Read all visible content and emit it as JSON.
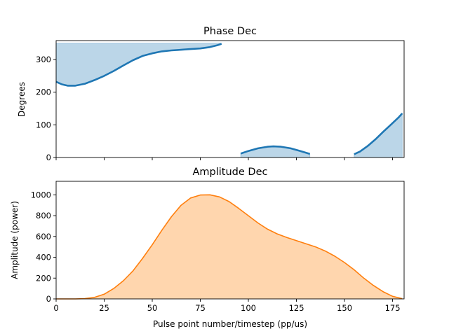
{
  "chart_data": [
    {
      "type": "area",
      "title": "Phase Dec",
      "xlabel": "",
      "ylabel": "Degrees",
      "xlim": [
        0,
        181
      ],
      "ylim": [
        0,
        358
      ],
      "yticks": [
        0,
        100,
        200,
        300
      ],
      "xticks": [
        0,
        25,
        50,
        75,
        100,
        125,
        150,
        175
      ],
      "x_tick_labels_shown": false,
      "fill_top": 350,
      "colors": {
        "line": "#1f77b4",
        "fill": "#1f77b4"
      },
      "segments": [
        {
          "fill": "above",
          "points": [
            [
              0,
              232
            ],
            [
              3,
              224
            ],
            [
              6,
              220
            ],
            [
              10,
              220
            ],
            [
              15,
              226
            ],
            [
              20,
              237
            ],
            [
              25,
              250
            ],
            [
              30,
              265
            ],
            [
              35,
              282
            ],
            [
              40,
              298
            ],
            [
              45,
              311
            ],
            [
              50,
              319
            ],
            [
              55,
              325
            ],
            [
              60,
              328
            ],
            [
              65,
              330
            ],
            [
              70,
              332
            ],
            [
              75,
              334
            ],
            [
              80,
              338
            ],
            [
              84,
              344
            ],
            [
              86,
              348
            ]
          ]
        },
        {
          "fill": "below",
          "points": [
            [
              96,
              12
            ],
            [
              100,
              20
            ],
            [
              105,
              28
            ],
            [
              110,
              33
            ],
            [
              113,
              34
            ],
            [
              117,
              33
            ],
            [
              122,
              28
            ],
            [
              127,
              20
            ],
            [
              132,
              11
            ]
          ]
        },
        {
          "fill": "below",
          "points": [
            [
              155,
              10
            ],
            [
              158,
              18
            ],
            [
              162,
              35
            ],
            [
              166,
              55
            ],
            [
              170,
              78
            ],
            [
              174,
              100
            ],
            [
              178,
              122
            ],
            [
              180,
              135
            ]
          ]
        }
      ]
    },
    {
      "type": "area",
      "title": "Amplitude Dec",
      "xlabel": "Pulse point number/timestep (pp/us)",
      "ylabel": "Amplitude (power)",
      "xlim": [
        0,
        181
      ],
      "ylim": [
        0,
        1130
      ],
      "yticks": [
        0,
        200,
        400,
        600,
        800,
        1000
      ],
      "xticks": [
        0,
        25,
        50,
        75,
        100,
        125,
        150,
        175
      ],
      "colors": {
        "line": "#ff7f0e",
        "fill": "#ffbb78"
      },
      "points": [
        [
          0,
          0
        ],
        [
          10,
          0
        ],
        [
          15,
          3
        ],
        [
          20,
          15
        ],
        [
          25,
          45
        ],
        [
          30,
          100
        ],
        [
          35,
          175
        ],
        [
          40,
          270
        ],
        [
          45,
          390
        ],
        [
          50,
          520
        ],
        [
          55,
          660
        ],
        [
          60,
          790
        ],
        [
          65,
          900
        ],
        [
          70,
          970
        ],
        [
          75,
          998
        ],
        [
          80,
          1000
        ],
        [
          85,
          980
        ],
        [
          90,
          935
        ],
        [
          95,
          870
        ],
        [
          100,
          800
        ],
        [
          105,
          730
        ],
        [
          110,
          670
        ],
        [
          115,
          625
        ],
        [
          120,
          590
        ],
        [
          125,
          560
        ],
        [
          130,
          530
        ],
        [
          135,
          500
        ],
        [
          140,
          460
        ],
        [
          145,
          410
        ],
        [
          150,
          350
        ],
        [
          155,
          280
        ],
        [
          160,
          200
        ],
        [
          165,
          130
        ],
        [
          170,
          70
        ],
        [
          175,
          25
        ],
        [
          180,
          3
        ]
      ]
    }
  ]
}
